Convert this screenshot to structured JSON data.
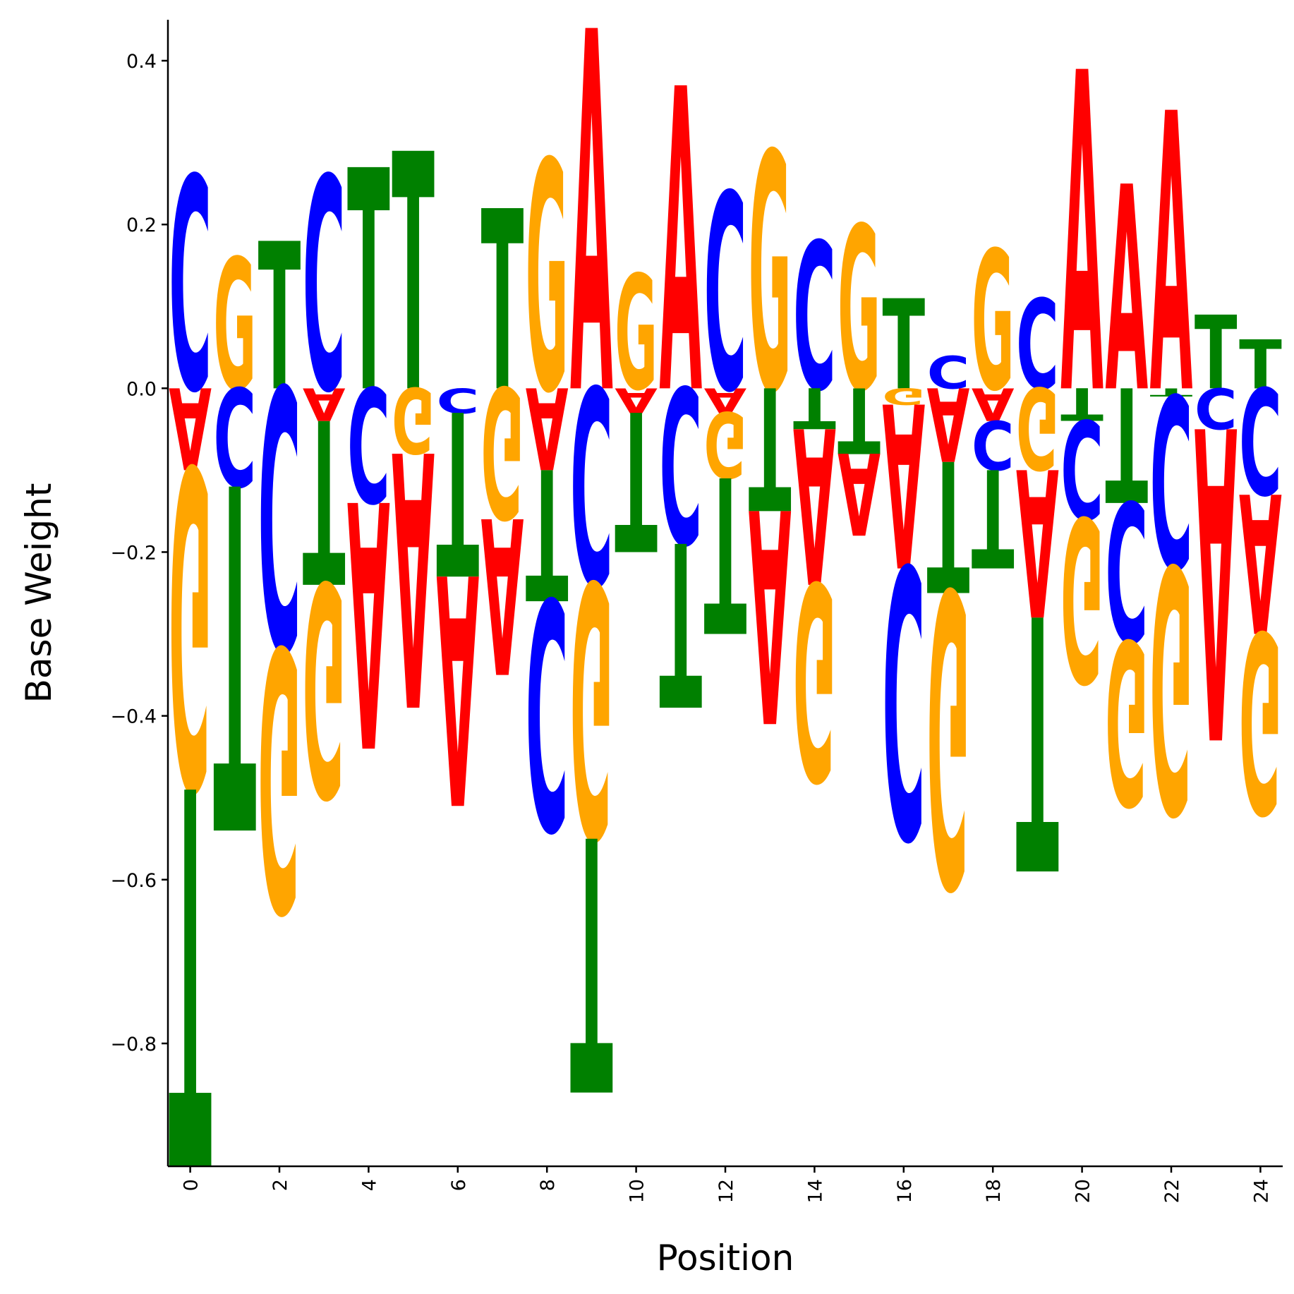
{
  "chart_data": {
    "type": "sequence-logo",
    "xlabel": "Position",
    "ylabel": "Base Weight",
    "xlim": [
      -0.5,
      24.5
    ],
    "ylim": [
      -0.95,
      0.45
    ],
    "x_ticks": [
      0,
      2,
      4,
      6,
      8,
      10,
      12,
      14,
      16,
      18,
      20,
      22,
      24
    ],
    "x_tick_labels": [
      "0",
      "2",
      "4",
      "6",
      "8",
      "10",
      "12",
      "14",
      "16",
      "18",
      "20",
      "22",
      "24"
    ],
    "y_ticks": [
      0.4,
      0.2,
      0.0,
      -0.2,
      -0.4,
      -0.6,
      -0.8
    ],
    "y_tick_labels": [
      "0.4",
      "0.2",
      "0.0",
      "−0.2",
      "−0.4",
      "−0.6",
      "−0.8"
    ],
    "colors": {
      "A": "#ff0000",
      "C": "#0000ff",
      "G": "#ffa500",
      "T": "#008000"
    },
    "grid": false,
    "legend": "none",
    "positions": [
      {
        "position": 0,
        "A": -0.1,
        "C": 0.26,
        "G": -0.39,
        "T": -0.46
      },
      {
        "position": 1,
        "A": 0.0,
        "C": -0.12,
        "G": 0.16,
        "T": -0.42
      },
      {
        "position": 2,
        "A": 0.0,
        "C": -0.32,
        "G": -0.32,
        "T": 0.18
      },
      {
        "position": 3,
        "A": -0.04,
        "C": 0.26,
        "G": -0.26,
        "T": -0.2
      },
      {
        "position": 4,
        "A": -0.3,
        "C": -0.14,
        "G": 0.0,
        "T": 0.27
      },
      {
        "position": 5,
        "A": -0.31,
        "C": 0.0,
        "G": -0.08,
        "T": 0.29
      },
      {
        "position": 6,
        "A": -0.28,
        "C": -0.03,
        "G": 0.0,
        "T": -0.2
      },
      {
        "position": 7,
        "A": -0.19,
        "C": 0.0,
        "G": -0.16,
        "T": 0.22
      },
      {
        "position": 8,
        "A": -0.1,
        "C": -0.28,
        "G": 0.28,
        "T": -0.16
      },
      {
        "position": 9,
        "A": 0.44,
        "C": -0.24,
        "G": -0.31,
        "T": -0.31
      },
      {
        "position": 10,
        "A": -0.03,
        "C": 0.0,
        "G": 0.14,
        "T": -0.17
      },
      {
        "position": 11,
        "A": 0.37,
        "C": -0.19,
        "G": 0.0,
        "T": -0.2
      },
      {
        "position": 12,
        "A": -0.03,
        "C": 0.24,
        "G": -0.08,
        "T": -0.19
      },
      {
        "position": 13,
        "A": -0.26,
        "C": 0.0,
        "G": 0.29,
        "T": -0.15
      },
      {
        "position": 14,
        "A": -0.19,
        "C": 0.18,
        "G": -0.24,
        "T": -0.05
      },
      {
        "position": 15,
        "A": -0.1,
        "C": 0.0,
        "G": 0.2,
        "T": -0.08
      },
      {
        "position": 16,
        "A": -0.2,
        "C": -0.33,
        "G": -0.02,
        "T": 0.11
      },
      {
        "position": 17,
        "A": -0.09,
        "C": 0.04,
        "G": -0.36,
        "T": -0.16
      },
      {
        "position": 18,
        "A": -0.04,
        "C": -0.06,
        "G": 0.17,
        "T": -0.12
      },
      {
        "position": 19,
        "A": -0.18,
        "C": 0.11,
        "G": -0.1,
        "T": -0.31
      },
      {
        "position": 20,
        "A": 0.39,
        "C": -0.12,
        "G": -0.2,
        "T": -0.04
      },
      {
        "position": 21,
        "A": 0.25,
        "C": -0.17,
        "G": -0.2,
        "T": -0.14
      },
      {
        "position": 22,
        "A": 0.34,
        "C": -0.21,
        "G": -0.3,
        "T": -0.01
      },
      {
        "position": 23,
        "A": -0.38,
        "C": -0.05,
        "G": 0.0,
        "T": 0.09
      },
      {
        "position": 24,
        "A": -0.17,
        "C": -0.13,
        "G": -0.22,
        "T": 0.06
      }
    ]
  }
}
